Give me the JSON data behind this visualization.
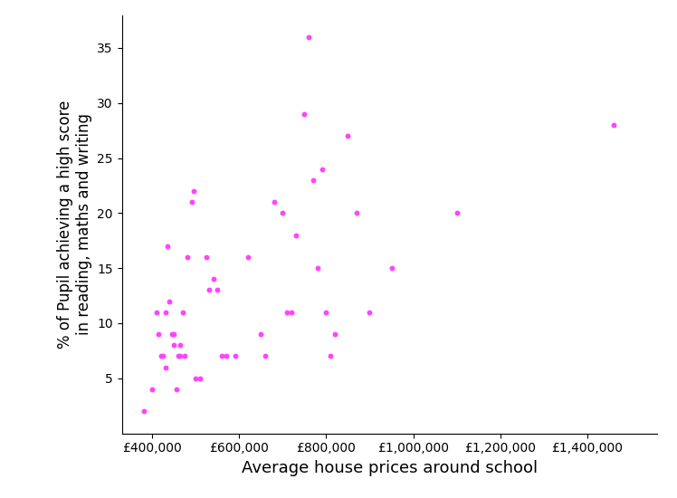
{
  "x_values": [
    380000,
    400000,
    410000,
    415000,
    420000,
    425000,
    430000,
    430000,
    435000,
    440000,
    445000,
    450000,
    450000,
    455000,
    460000,
    465000,
    465000,
    470000,
    475000,
    480000,
    490000,
    495000,
    500000,
    510000,
    525000,
    530000,
    540000,
    550000,
    560000,
    570000,
    590000,
    620000,
    650000,
    660000,
    680000,
    700000,
    710000,
    720000,
    730000,
    750000,
    760000,
    770000,
    780000,
    790000,
    800000,
    810000,
    820000,
    850000,
    870000,
    900000,
    950000,
    1100000,
    1460000
  ],
  "y_values": [
    2,
    4,
    11,
    9,
    7,
    7,
    6,
    11,
    17,
    12,
    9,
    9,
    8,
    4,
    7,
    8,
    7,
    11,
    7,
    16,
    21,
    22,
    5,
    5,
    16,
    13,
    14,
    13,
    7,
    7,
    7,
    16,
    9,
    7,
    21,
    20,
    11,
    11,
    18,
    29,
    36,
    23,
    15,
    24,
    11,
    7,
    9,
    27,
    20,
    11,
    15,
    20,
    28
  ],
  "color": "#FF44FF",
  "marker": "o",
  "marker_size": 18,
  "xlabel": "Average house prices around school",
  "ylabel": "% of Pupil achieving a high score\nin reading, maths and writing",
  "xlim": [
    330000,
    1560000
  ],
  "ylim": [
    0,
    38
  ],
  "xtick_values": [
    400000,
    600000,
    800000,
    1000000,
    1200000,
    1400000
  ],
  "ytick_values": [
    5,
    10,
    15,
    20,
    25,
    30,
    35
  ],
  "xlabel_fontsize": 13,
  "ylabel_fontsize": 12,
  "tick_fontsize": 10,
  "background_color": "#ffffff",
  "figure_facecolor": "#ffffff"
}
